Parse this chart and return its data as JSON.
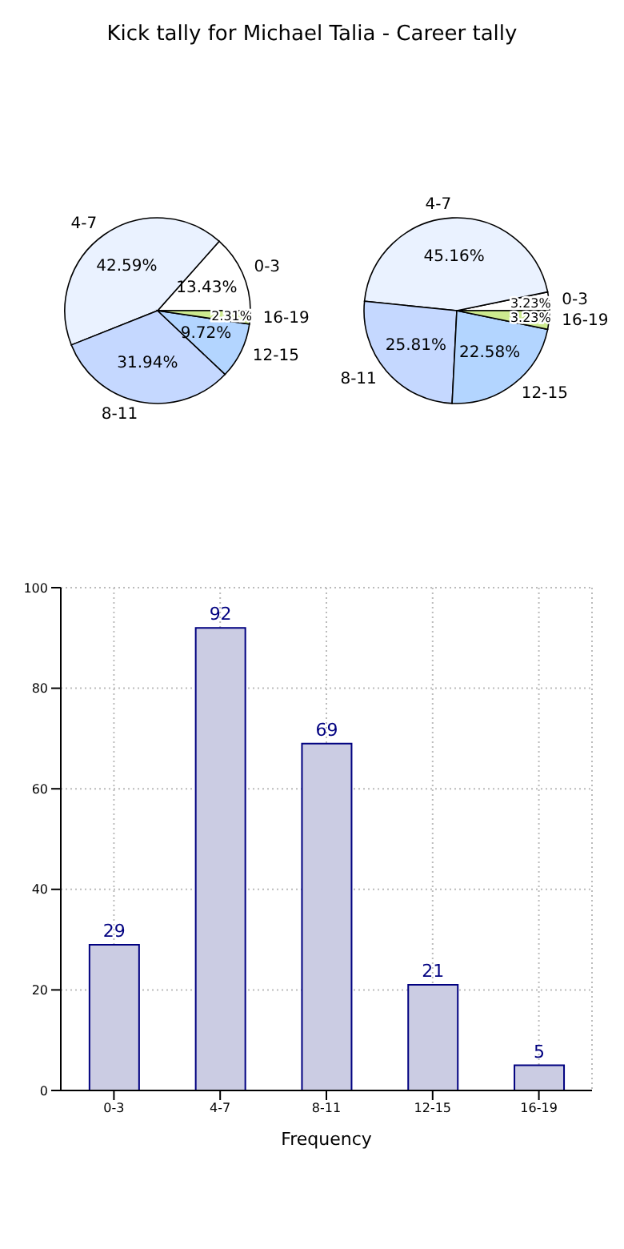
{
  "chart_data": [
    {
      "type": "pie",
      "title": "Kick tally for Michael Talia - Career tally",
      "categories": [
        "0-3",
        "4-7",
        "8-11",
        "12-15",
        "16-19"
      ],
      "colors": [
        "#ffffff",
        "#eaf2ff",
        "#c5d8ff",
        "#b3d5ff",
        "#cdea8f"
      ],
      "legend": false,
      "series": [
        {
          "values": [
            13.43,
            42.59,
            31.94,
            9.72,
            2.31
          ],
          "value_labels": [
            "13.43%",
            "42.59%",
            "31.94%",
            "9.72%",
            "2.31%"
          ]
        },
        {
          "values": [
            3.23,
            45.16,
            25.81,
            22.58,
            3.23
          ],
          "value_labels": [
            "3.23%",
            "45.16%",
            "25.81%",
            "22.58%",
            "3.23%"
          ]
        }
      ]
    },
    {
      "type": "bar",
      "categories": [
        "0-3",
        "4-7",
        "8-11",
        "12-15",
        "16-19"
      ],
      "values": [
        29,
        92,
        69,
        21,
        5
      ],
      "color": "#cbcce3",
      "xlabel": "Frequency",
      "ylim": [
        0,
        100
      ],
      "yticks": [
        0,
        20,
        40,
        60,
        80,
        100
      ],
      "grid": true,
      "data_labels": true,
      "legend": false
    }
  ]
}
